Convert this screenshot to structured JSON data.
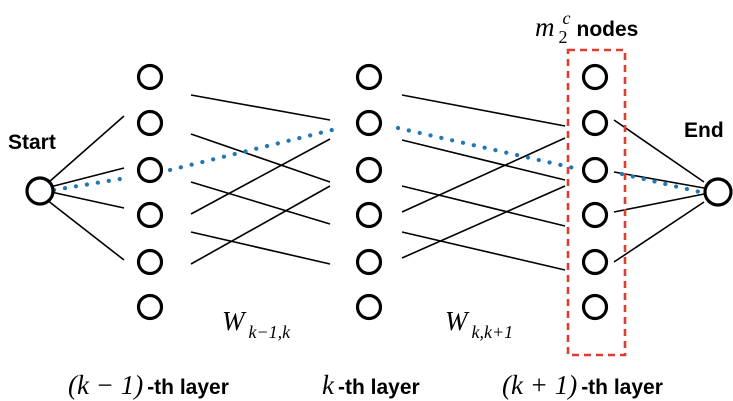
{
  "start_label": "Start",
  "end_label": "End",
  "box_label": {
    "m": "m",
    "sub": "2",
    "sup": "c",
    "suffix": " nodes"
  },
  "weights": [
    {
      "W": "W",
      "sub": "k−1,k"
    },
    {
      "W": "W",
      "sub": "k,k+1"
    }
  ],
  "layers": [
    {
      "math": "(k − 1)",
      "suffix": "-th layer"
    },
    {
      "math": "k",
      "suffix": "-th layer"
    },
    {
      "math": "(k + 1)",
      "suffix": "-th layer"
    }
  ],
  "colors": {
    "path": "#1f77b4",
    "box": "#e03c31"
  }
}
